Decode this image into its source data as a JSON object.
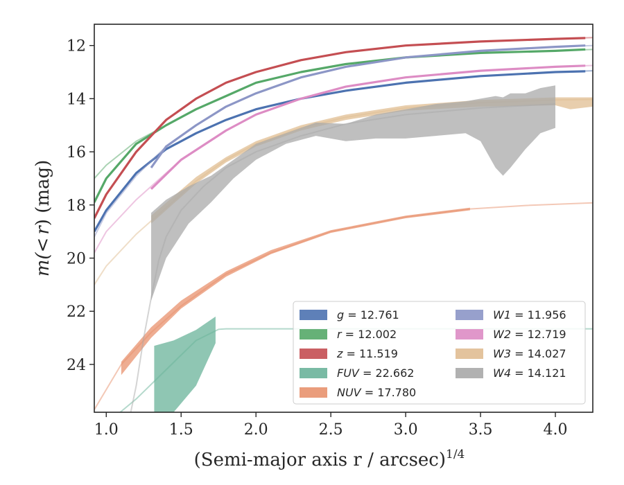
{
  "chart_data": {
    "type": "line",
    "xlabel": "(Semi-major axis r / arcsec)",
    "xlabel_exponent": "1/4",
    "ylabel_m": "m(",
    "ylabel_lt": "<",
    "ylabel_r": "r",
    "ylabel_tail": ") (mag)",
    "xlim": [
      0.92,
      4.25
    ],
    "ylim": [
      25.8,
      11.2
    ],
    "y_inverted": true,
    "grid": false,
    "legend_placement": "lower-right",
    "xticks": [
      1.0,
      1.5,
      2.0,
      2.5,
      3.0,
      3.5,
      4.0
    ],
    "xtick_labels": [
      "1.0",
      "1.5",
      "2.0",
      "2.5",
      "3.0",
      "3.5",
      "4.0"
    ],
    "yticks": [
      12,
      14,
      16,
      18,
      20,
      22,
      24
    ],
    "ytick_labels": [
      "12",
      "14",
      "16",
      "18",
      "20",
      "22",
      "24"
    ],
    "series": [
      {
        "name": "g",
        "label": "g = 12.761",
        "color": "#4c72b0",
        "model": {
          "x": [
            0.92,
            1.0,
            1.2,
            1.4,
            1.6,
            1.8,
            2.0,
            2.3,
            2.6,
            3.0,
            3.5,
            4.0,
            4.25
          ],
          "y": [
            19.0,
            18.2,
            16.8,
            15.9,
            15.3,
            14.8,
            14.4,
            14.0,
            13.7,
            13.4,
            13.15,
            13.0,
            12.95
          ]
        },
        "data": {
          "x": [
            0.92,
            1.0,
            1.2,
            1.4,
            1.6,
            1.8,
            2.0,
            2.3,
            2.6,
            3.0,
            3.5,
            4.0,
            4.2
          ],
          "y": [
            19.0,
            18.2,
            16.8,
            15.9,
            15.3,
            14.8,
            14.4,
            14.0,
            13.7,
            13.4,
            13.15,
            13.0,
            12.97
          ]
        }
      },
      {
        "name": "r",
        "label": "r = 12.002",
        "color": "#55a868",
        "model": {
          "x": [
            0.92,
            1.0,
            1.2,
            1.4,
            1.6,
            1.8,
            2.0,
            2.3,
            2.6,
            3.0,
            3.5,
            4.0,
            4.25
          ],
          "y": [
            17.0,
            16.5,
            15.6,
            15.0,
            14.4,
            13.9,
            13.4,
            13.0,
            12.7,
            12.45,
            12.28,
            12.2,
            12.15
          ]
        },
        "data": {
          "x": [
            0.92,
            1.0,
            1.2,
            1.4,
            1.6,
            1.8,
            2.0,
            2.3,
            2.6,
            3.0,
            3.5,
            4.0,
            4.2
          ],
          "y": [
            17.9,
            17.0,
            15.7,
            15.0,
            14.4,
            13.9,
            13.4,
            13.0,
            12.7,
            12.45,
            12.28,
            12.2,
            12.15
          ]
        }
      },
      {
        "name": "z",
        "label": "z = 11.519",
        "color": "#c44e52",
        "model": {
          "x": [
            0.92,
            1.0,
            1.2,
            1.4,
            1.6,
            1.8,
            2.0,
            2.3,
            2.6,
            3.0,
            3.5,
            4.0,
            4.25
          ],
          "y": [
            18.5,
            17.6,
            16.0,
            14.8,
            14.0,
            13.4,
            13.0,
            12.55,
            12.25,
            12.0,
            11.85,
            11.75,
            11.7
          ]
        },
        "data": {
          "x": [
            0.92,
            1.0,
            1.2,
            1.4,
            1.6,
            1.8,
            2.0,
            2.3,
            2.6,
            3.0,
            3.5,
            4.0,
            4.2
          ],
          "y": [
            18.5,
            17.6,
            16.0,
            14.8,
            14.0,
            13.4,
            13.0,
            12.55,
            12.25,
            12.0,
            11.85,
            11.75,
            11.72
          ]
        }
      },
      {
        "name": "FUV",
        "label": "FUV = 22.662",
        "color": "#6ab39a",
        "model": {
          "x": [
            1.05,
            1.2,
            1.4,
            1.6,
            1.75,
            1.8,
            2.5,
            3.0,
            4.25
          ],
          "y": [
            26.0,
            25.3,
            24.2,
            23.1,
            22.68,
            22.66,
            22.662,
            22.662,
            22.662
          ]
        },
        "band": {
          "x": [
            1.32,
            1.45,
            1.6,
            1.73
          ],
          "y_lo": [
            25.8,
            25.8,
            24.8,
            23.2
          ],
          "y_hi": [
            23.3,
            23.1,
            22.7,
            22.2
          ]
        }
      },
      {
        "name": "NUV",
        "label": "NUV = 17.780",
        "color": "#e8926e",
        "model": {
          "x": [
            0.92,
            1.1,
            1.3,
            1.5,
            1.8,
            2.1,
            2.5,
            3.0,
            3.43,
            3.8,
            4.25
          ],
          "y": [
            25.7,
            24.0,
            22.8,
            21.8,
            20.6,
            19.8,
            19.0,
            18.45,
            18.15,
            18.02,
            17.92
          ]
        },
        "band": {
          "x": [
            1.1,
            1.3,
            1.5,
            1.8,
            2.1,
            2.5,
            3.0,
            3.43
          ],
          "y_lo": [
            24.4,
            23.0,
            21.9,
            20.7,
            19.85,
            19.05,
            18.5,
            18.2
          ],
          "y_hi": [
            23.9,
            22.6,
            21.6,
            20.5,
            19.7,
            18.95,
            18.4,
            18.1
          ]
        }
      },
      {
        "name": "W1",
        "label": "W1 = 11.956",
        "color": "#8c96c6",
        "model": {
          "x": [
            0.92,
            1.0,
            1.2,
            1.4,
            1.6,
            1.8,
            2.0,
            2.3,
            2.6,
            3.0,
            3.5,
            4.0,
            4.25
          ],
          "y": [
            19.2,
            18.3,
            16.9,
            15.8,
            15.0,
            14.3,
            13.8,
            13.2,
            12.8,
            12.45,
            12.2,
            12.05,
            12.0
          ]
        },
        "data": {
          "x": [
            1.3,
            1.4,
            1.6,
            1.8,
            2.0,
            2.3,
            2.6,
            3.0,
            3.5,
            4.0,
            4.2
          ],
          "y": [
            16.6,
            15.8,
            15.0,
            14.3,
            13.8,
            13.2,
            12.8,
            12.45,
            12.2,
            12.05,
            12.0
          ]
        }
      },
      {
        "name": "W2",
        "label": "W2 = 12.719",
        "color": "#dd8cc4",
        "model": {
          "x": [
            0.92,
            1.0,
            1.2,
            1.3,
            1.5,
            1.8,
            2.0,
            2.3,
            2.6,
            3.0,
            3.5,
            4.0,
            4.25
          ],
          "y": [
            19.8,
            19.0,
            17.8,
            17.3,
            16.3,
            15.2,
            14.6,
            14.0,
            13.55,
            13.2,
            12.95,
            12.8,
            12.75
          ]
        },
        "data": {
          "x": [
            1.3,
            1.5,
            1.8,
            2.0,
            2.3,
            2.6,
            3.0,
            3.5,
            4.0,
            4.2
          ],
          "y": [
            17.4,
            16.3,
            15.2,
            14.6,
            14.0,
            13.55,
            13.2,
            12.95,
            12.8,
            12.76
          ]
        }
      },
      {
        "name": "W3",
        "label": "W3 = 14.027",
        "color": "#e0bd92",
        "model": {
          "x": [
            0.92,
            1.0,
            1.2,
            1.4,
            1.6,
            1.8,
            2.0,
            2.3,
            2.6,
            3.0,
            3.5,
            4.0,
            4.25
          ],
          "y": [
            21.0,
            20.3,
            19.1,
            18.1,
            17.1,
            16.3,
            15.7,
            15.1,
            14.7,
            14.35,
            14.15,
            14.05,
            14.03
          ]
        },
        "band": {
          "x": [
            1.3,
            1.6,
            1.8,
            2.0,
            2.3,
            2.6,
            3.0,
            3.5,
            4.0,
            4.1,
            4.25
          ],
          "y_lo": [
            18.7,
            17.2,
            16.4,
            15.8,
            15.2,
            14.8,
            14.45,
            14.3,
            14.25,
            14.4,
            14.3
          ],
          "y_hi": [
            18.4,
            16.95,
            16.2,
            15.6,
            15.0,
            14.6,
            14.25,
            14.05,
            13.95,
            13.95,
            13.95
          ]
        }
      },
      {
        "name": "W4",
        "label": "W4 = 14.121",
        "color": "#a9a9a9",
        "model": {
          "x": [
            1.16,
            1.2,
            1.25,
            1.3,
            1.35,
            1.4,
            1.5,
            1.65,
            1.8,
            2.0,
            2.3,
            2.6,
            3.0,
            3.5,
            4.0
          ],
          "y": [
            25.9,
            24.8,
            23.0,
            21.5,
            20.1,
            19.2,
            18.2,
            17.3,
            16.6,
            16.0,
            15.4,
            14.95,
            14.6,
            14.35,
            14.2
          ]
        },
        "band": {
          "x": [
            1.3,
            1.4,
            1.55,
            1.7,
            1.85,
            2.0,
            2.2,
            2.4,
            2.6,
            2.8,
            3.0,
            3.2,
            3.4,
            3.5,
            3.6,
            3.65,
            3.7,
            3.8,
            3.9,
            4.0
          ],
          "y_lo": [
            21.6,
            20.0,
            18.7,
            17.9,
            17.0,
            16.3,
            15.7,
            15.4,
            15.6,
            15.5,
            15.5,
            15.4,
            15.3,
            15.6,
            16.6,
            16.9,
            16.6,
            15.9,
            15.3,
            15.1
          ],
          "y_hi": [
            18.3,
            17.8,
            17.3,
            16.9,
            16.3,
            15.7,
            15.3,
            14.9,
            14.95,
            14.6,
            14.4,
            14.2,
            14.1,
            14.0,
            13.9,
            13.95,
            13.8,
            13.8,
            13.6,
            13.5
          ]
        }
      }
    ]
  }
}
